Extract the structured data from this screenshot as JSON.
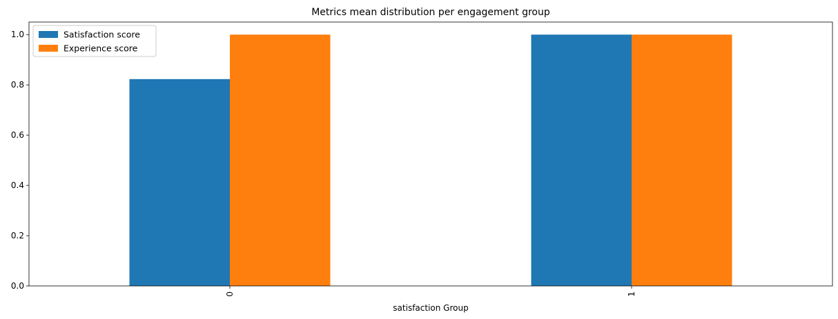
{
  "chart_data": {
    "type": "bar",
    "title": "Metrics mean distribution per engagement group",
    "xlabel": "satisfaction Group",
    "ylabel": "",
    "categories": [
      "0",
      "1"
    ],
    "series": [
      {
        "name": "Satisfaction score",
        "color": "#1f77b4",
        "values": [
          0.823,
          1.0
        ]
      },
      {
        "name": "Experience score",
        "color": "#ff7f0e",
        "values": [
          1.0,
          1.0
        ]
      }
    ],
    "ylim": [
      0,
      1.05
    ],
    "yticks": [
      0.0,
      0.2,
      0.4,
      0.6,
      0.8,
      1.0
    ],
    "ytick_labels": [
      "0.0",
      "0.2",
      "0.4",
      "0.6",
      "0.8",
      "1.0"
    ],
    "xtick_rotation": 90,
    "grid": false,
    "legend_position": "upper-left"
  }
}
